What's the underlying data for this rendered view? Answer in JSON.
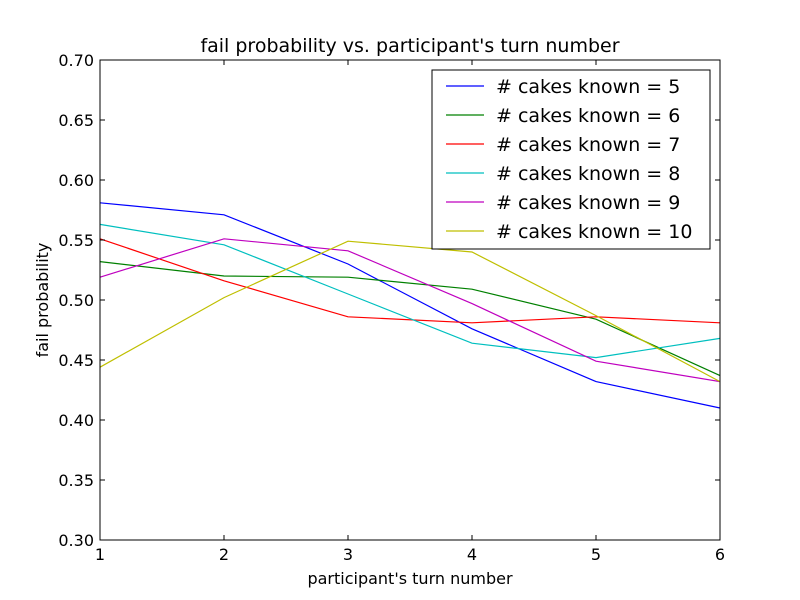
{
  "chart_data": {
    "type": "line",
    "title": "fail probability vs. participant's turn number",
    "xlabel": "participant's turn number",
    "ylabel": "fail probability",
    "x": [
      1,
      2,
      3,
      4,
      5,
      6
    ],
    "xlim": [
      1,
      6
    ],
    "ylim": [
      0.3,
      0.7
    ],
    "xticks": [
      "1",
      "2",
      "3",
      "4",
      "5",
      "6"
    ],
    "yticks": [
      "0.30",
      "0.35",
      "0.40",
      "0.45",
      "0.50",
      "0.55",
      "0.60",
      "0.65",
      "0.70"
    ],
    "grid": false,
    "legend_position": "top-right",
    "series": [
      {
        "name": "# cakes known = 5",
        "color": "#0000ff",
        "values": [
          0.581,
          0.571,
          0.53,
          0.476,
          0.432,
          0.41
        ]
      },
      {
        "name": "# cakes known = 6",
        "color": "#008000",
        "values": [
          0.532,
          0.52,
          0.519,
          0.509,
          0.484,
          0.437
        ]
      },
      {
        "name": "# cakes known = 7",
        "color": "#ff0000",
        "values": [
          0.551,
          0.516,
          0.486,
          0.481,
          0.486,
          0.481
        ]
      },
      {
        "name": "# cakes known = 8",
        "color": "#00bfbf",
        "values": [
          0.563,
          0.546,
          0.505,
          0.464,
          0.452,
          0.468
        ]
      },
      {
        "name": "# cakes known = 9",
        "color": "#bf00bf",
        "values": [
          0.519,
          0.551,
          0.541,
          0.497,
          0.449,
          0.432
        ]
      },
      {
        "name": "# cakes known = 10",
        "color": "#bfbf00",
        "values": [
          0.444,
          0.502,
          0.549,
          0.54,
          0.487,
          0.432
        ]
      }
    ]
  }
}
